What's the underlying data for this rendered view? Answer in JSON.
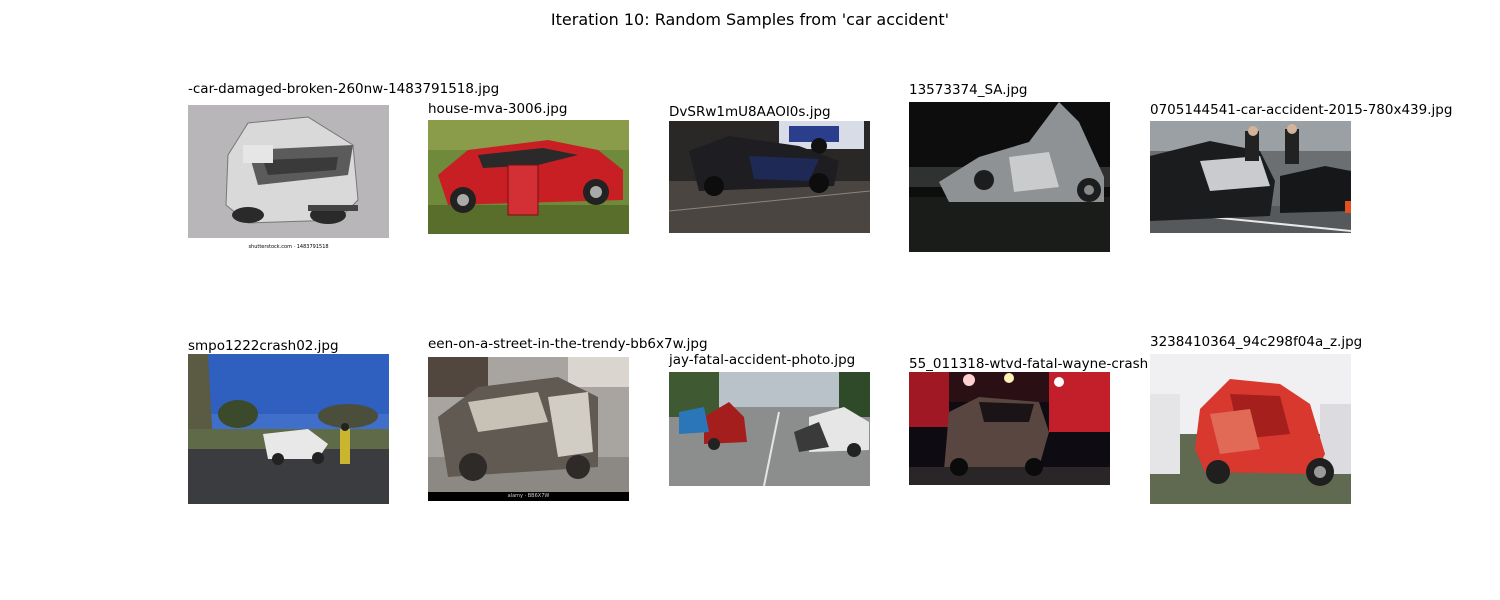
{
  "title": "Iteration 10: Random Samples from 'car accident'",
  "samples": [
    {
      "caption": "-car-damaged-broken-260nw-1483791518.jpg",
      "stamp": "shutterstock.com · 1483791518"
    },
    {
      "caption": "house-mva-3006.jpg"
    },
    {
      "caption": "DvSRw1mU8AAOI0s.jpg"
    },
    {
      "caption": "13573374_SA.jpg"
    },
    {
      "caption": "0705144541-car-accident-2015-780x439.jpg"
    },
    {
      "caption": "smpo1222crash02.jpg"
    },
    {
      "caption": "een-on-a-street-in-the-trendy-bb6x7w.jpg",
      "stamp": "alamy · BB6X7W"
    },
    {
      "caption": "jay-fatal-accident-photo.jpg"
    },
    {
      "caption": "55_011318-wtvd-fatal-wayne-crash"
    },
    {
      "caption": "3238410364_94c298f04a_z.jpg"
    }
  ]
}
